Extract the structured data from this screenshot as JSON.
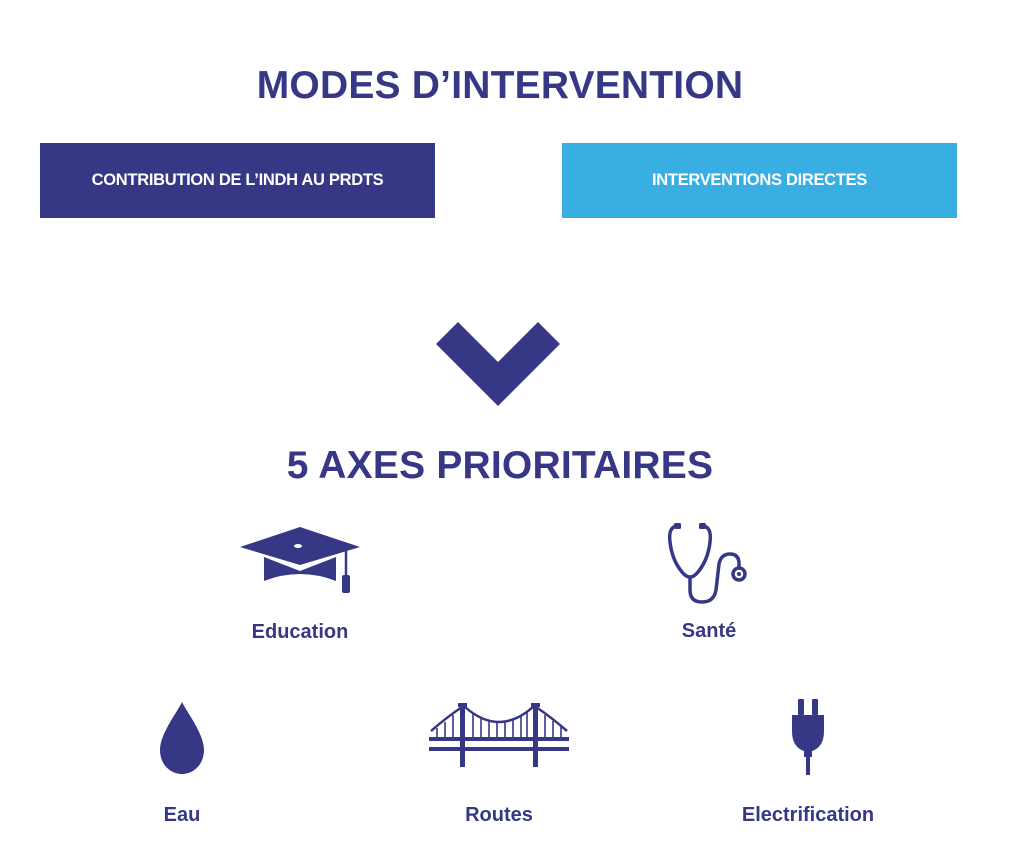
{
  "modes": {
    "title": "MODES D’INTERVENTION",
    "items": [
      {
        "label": "CONTRIBUTION DE L’INDH AU PRDTS",
        "color": "#363886"
      },
      {
        "label": "INTERVENTIONS DIRECTES",
        "color": "#39aee2"
      }
    ]
  },
  "axes": {
    "title": "5 AXES PRIORITAIRES",
    "items": [
      {
        "label": "Education",
        "icon": "graduation-cap-icon"
      },
      {
        "label": "Santé",
        "icon": "stethoscope-icon"
      },
      {
        "label": "Eau",
        "icon": "water-drop-icon"
      },
      {
        "label": "Routes",
        "icon": "bridge-icon"
      },
      {
        "label": "Electrification",
        "icon": "power-plug-icon"
      }
    ]
  },
  "colors": {
    "primary": "#363886",
    "accent": "#39aee2"
  }
}
